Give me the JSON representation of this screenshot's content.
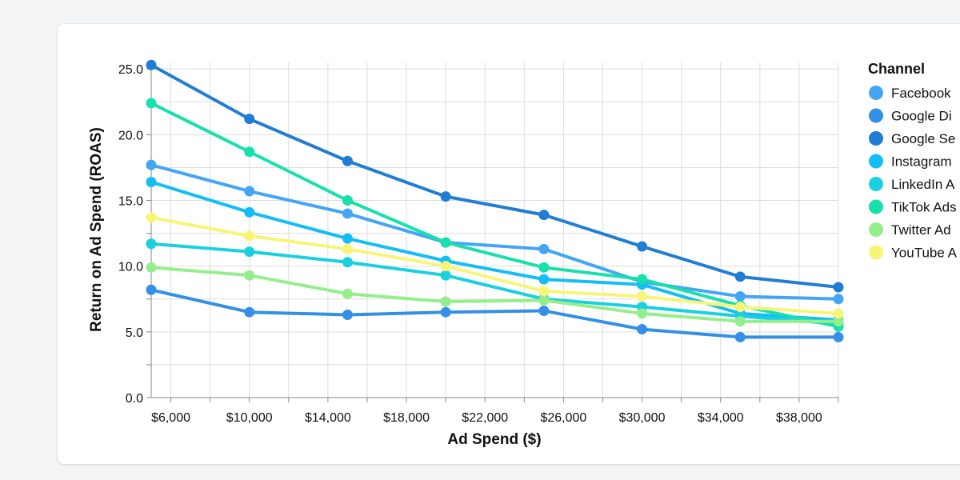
{
  "chart_data": {
    "type": "line",
    "xlabel": "Ad Spend ($)",
    "ylabel": "Return on Ad Spend (ROAS)",
    "xlim": [
      5000,
      40000
    ],
    "ylim": [
      0,
      25.5
    ],
    "x_ticks": [
      {
        "value": 6000,
        "label": "$6,000"
      },
      {
        "value": 10000,
        "label": "$10,000"
      },
      {
        "value": 14000,
        "label": "$14,000"
      },
      {
        "value": 18000,
        "label": "$18,000"
      },
      {
        "value": 22000,
        "label": "$22,000"
      },
      {
        "value": 26000,
        "label": "$26,000"
      },
      {
        "value": 30000,
        "label": "$30,000"
      },
      {
        "value": 34000,
        "label": "$34,000"
      },
      {
        "value": 38000,
        "label": "$38,000"
      }
    ],
    "y_ticks": [
      {
        "value": 0,
        "label": "0.0"
      },
      {
        "value": 5,
        "label": "5.0"
      },
      {
        "value": 10,
        "label": "10.0"
      },
      {
        "value": 15,
        "label": "15.0"
      },
      {
        "value": 20,
        "label": "20.0"
      },
      {
        "value": 25,
        "label": "25.0"
      }
    ],
    "grid": true,
    "legend": {
      "title": "Channel",
      "position": "right"
    },
    "x": [
      5000,
      10000,
      15000,
      20000,
      25000,
      30000,
      35000,
      40000
    ],
    "series": [
      {
        "name": "Facebook Ads",
        "legend_label": "Facebook",
        "color": "#45a5f5",
        "values": [
          17.7,
          15.7,
          14.0,
          11.8,
          11.3,
          8.8,
          7.7,
          7.5
        ]
      },
      {
        "name": "Google Display",
        "legend_label": "Google Di",
        "color": "#3390e6",
        "values": [
          8.2,
          6.5,
          6.3,
          6.5,
          6.6,
          5.2,
          4.6,
          4.6
        ]
      },
      {
        "name": "Google Search",
        "legend_label": "Google Se",
        "color": "#217dd4",
        "values": [
          25.3,
          21.2,
          18.0,
          15.3,
          13.9,
          11.5,
          9.2,
          8.4
        ]
      },
      {
        "name": "Instagram Ads",
        "legend_label": "Instagram",
        "color": "#15bdf5",
        "values": [
          16.4,
          14.1,
          12.1,
          10.4,
          9.0,
          8.6,
          6.4,
          5.9
        ]
      },
      {
        "name": "LinkedIn Ads",
        "legend_label": "LinkedIn A",
        "color": "#1ad0e0",
        "values": [
          11.7,
          11.1,
          10.3,
          9.3,
          7.5,
          6.9,
          6.2,
          5.6
        ]
      },
      {
        "name": "TikTok Ads",
        "legend_label": "TikTok Ads",
        "color": "#18e0ac",
        "values": [
          22.4,
          18.7,
          15.0,
          11.8,
          9.9,
          9.0,
          7.0,
          5.4
        ]
      },
      {
        "name": "Twitter Ads",
        "legend_label": "Twitter Ad",
        "color": "#95ee8c",
        "values": [
          9.9,
          9.3,
          7.9,
          7.3,
          7.4,
          6.4,
          5.8,
          5.8
        ]
      },
      {
        "name": "YouTube Ads",
        "legend_label": "YouTube A",
        "color": "#f7f578",
        "values": [
          13.7,
          12.3,
          11.3,
          10.0,
          8.1,
          7.7,
          6.9,
          6.4
        ]
      }
    ]
  }
}
